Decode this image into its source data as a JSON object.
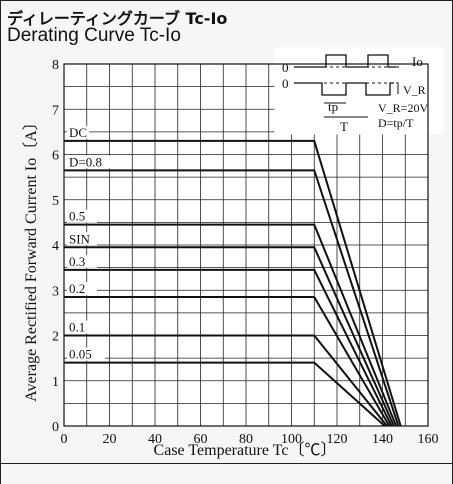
{
  "title_jp": "ディレーティングカーブ Tc-Io",
  "title_en": "Derating Curve Tc-Io",
  "chart_data": {
    "type": "line",
    "title": "Derating Curve Tc-Io",
    "xlabel": "Case Temperature Tc〔℃〕",
    "ylabel": "Average Rectified Forward Current Io〔A〕",
    "xlim": [
      0,
      160
    ],
    "ylim": [
      0,
      8
    ],
    "x_ticks": [
      "0",
      "20",
      "40",
      "60",
      "80",
      "100",
      "120",
      "140",
      "160"
    ],
    "y_ticks": [
      "0",
      "1",
      "2",
      "3",
      "4",
      "5",
      "6",
      "7",
      "8"
    ],
    "grid": true,
    "series": [
      {
        "name": "DC",
        "values": [
          [
            0,
            6.3
          ],
          [
            110,
            6.3
          ],
          [
            148,
            0
          ]
        ]
      },
      {
        "name": "D=0.8",
        "values": [
          [
            0,
            5.65
          ],
          [
            110,
            5.65
          ],
          [
            147,
            0
          ]
        ]
      },
      {
        "name": "0.5",
        "values": [
          [
            0,
            4.45
          ],
          [
            110,
            4.45
          ],
          [
            146,
            0
          ]
        ]
      },
      {
        "name": "SIN",
        "values": [
          [
            0,
            3.95
          ],
          [
            110,
            3.95
          ],
          [
            145,
            0
          ]
        ]
      },
      {
        "name": "0.3",
        "values": [
          [
            0,
            3.45
          ],
          [
            110,
            3.45
          ],
          [
            144,
            0
          ]
        ]
      },
      {
        "name": "0.2",
        "values": [
          [
            0,
            2.85
          ],
          [
            110,
            2.85
          ],
          [
            143,
            0
          ]
        ]
      },
      {
        "name": "0.1",
        "values": [
          [
            0,
            2.0
          ],
          [
            110,
            2.0
          ],
          [
            142,
            0
          ]
        ]
      },
      {
        "name": "0.05",
        "values": [
          [
            0,
            1.4
          ],
          [
            110,
            1.4
          ],
          [
            141,
            0
          ]
        ]
      }
    ],
    "inset": {
      "zero_top": "0",
      "zero_bottom": "0",
      "io_label": "Io",
      "vr_label": "V_R",
      "tp_label": "tp",
      "t_label": "T",
      "cond1": "V_R=20V",
      "cond2": "D=tp/T"
    }
  }
}
